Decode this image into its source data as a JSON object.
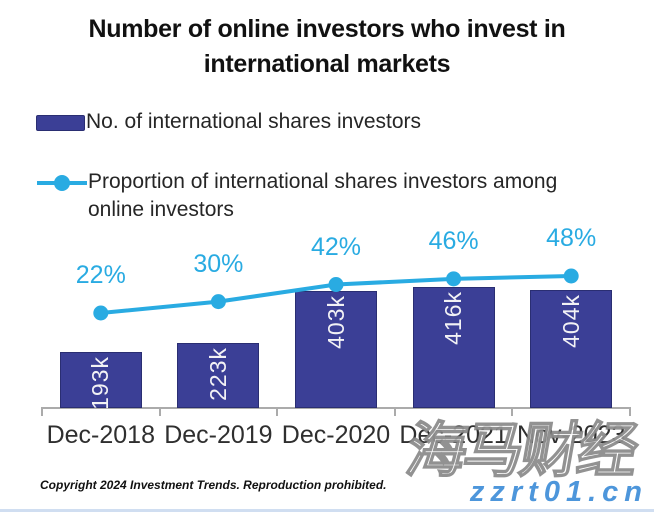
{
  "title": "Number of online investors who invest in international markets",
  "legend": {
    "bar_series_label": "No. of international shares investors",
    "line_series_label": "Proportion of international shares investors among online investors"
  },
  "colors": {
    "bar": "#3b3f96",
    "line": "#29abe2",
    "axis": "#ababab"
  },
  "chart_data": {
    "type": "bar+line combo",
    "categories": [
      "Dec-2018",
      "Dec-2019",
      "Dec-2020",
      "Dec-2021",
      "Nov-2023"
    ],
    "series": [
      {
        "name": "No. of international shares investors",
        "type": "bar",
        "values_thousands": [
          193,
          223,
          403,
          416,
          404
        ],
        "labels": [
          "193k",
          "223k",
          "403k",
          "416k",
          "404k"
        ],
        "label_position": "inside-end, rotated vertical",
        "color": "#3b3f96"
      },
      {
        "name": "Proportion of international shares investors among online investors",
        "type": "line",
        "values_percent": [
          22,
          30,
          42,
          46,
          48
        ],
        "labels": [
          "22%",
          "30%",
          "42%",
          "46%",
          "48%"
        ],
        "label_position": "above markers",
        "color": "#29abe2",
        "marker": "circle"
      }
    ],
    "grid": false,
    "y_axis_visible": false,
    "legend_position": "top-left, stacked"
  },
  "footer": {
    "copyright": "Copyright 2024 Investment Trends. Reproduction prohibited."
  },
  "watermarks": {
    "cn_text": "海马财经",
    "site_text": "zzrt01.cn"
  }
}
